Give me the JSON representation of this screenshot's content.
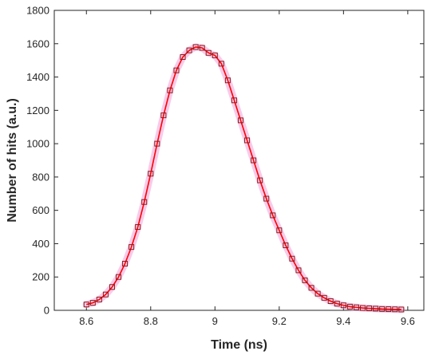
{
  "chart_data": {
    "type": "scatter",
    "title": "",
    "xlabel": "Time (ns)",
    "ylabel": "Number of hits (a.u.)",
    "xlim": [
      8.5,
      9.65
    ],
    "ylim": [
      0,
      1800
    ],
    "xticks": [
      8.6,
      8.8,
      9,
      9.2,
      9.4,
      9.6
    ],
    "xtick_labels": [
      "8.6",
      "8.8",
      "9",
      "9.2",
      "9.4",
      "9.6"
    ],
    "yticks": [
      0,
      200,
      400,
      600,
      800,
      1000,
      1200,
      1400,
      1600,
      1800
    ],
    "ytick_labels": [
      "0",
      "200",
      "400",
      "600",
      "800",
      "1000",
      "1200",
      "1400",
      "1600",
      "1800"
    ],
    "grid": false,
    "legend": "none",
    "marker": "square",
    "marker_color": "#8b1a1a",
    "line_color": "#ff0000",
    "halo_color": "#f2a0d8",
    "x": [
      8.6,
      8.62,
      8.64,
      8.66,
      8.68,
      8.7,
      8.72,
      8.74,
      8.76,
      8.78,
      8.8,
      8.82,
      8.84,
      8.86,
      8.88,
      8.9,
      8.92,
      8.94,
      8.96,
      8.98,
      9.0,
      9.02,
      9.04,
      9.06,
      9.08,
      9.1,
      9.12,
      9.14,
      9.16,
      9.18,
      9.2,
      9.22,
      9.24,
      9.26,
      9.28,
      9.3,
      9.32,
      9.34,
      9.36,
      9.38,
      9.4,
      9.42,
      9.44,
      9.46,
      9.48,
      9.5,
      9.52,
      9.54,
      9.56,
      9.58
    ],
    "y": [
      35,
      45,
      65,
      95,
      140,
      200,
      280,
      380,
      500,
      650,
      820,
      1000,
      1170,
      1320,
      1440,
      1520,
      1560,
      1580,
      1575,
      1545,
      1530,
      1480,
      1380,
      1260,
      1140,
      1020,
      900,
      780,
      670,
      570,
      480,
      390,
      310,
      240,
      180,
      135,
      100,
      75,
      55,
      40,
      30,
      22,
      18,
      14,
      12,
      10,
      8,
      7,
      6,
      5
    ]
  }
}
